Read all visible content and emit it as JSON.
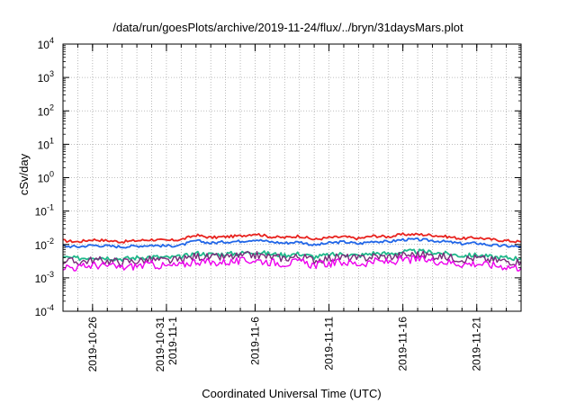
{
  "chart_data": {
    "type": "line",
    "title": "/data/run/goesPlots/archive/2019-11-24/flux/../bryn/31daysMars.plot",
    "xlabel": "Coordinated Universal Time (UTC)",
    "ylabel": "cSv/day",
    "yscale": "log",
    "ylim": [
      0.0001,
      10000
    ],
    "xlim": [
      "2019-10-24",
      "2019-11-24"
    ],
    "y_ticks": [
      {
        "value": 0.0001,
        "base": "10",
        "exp": "-4"
      },
      {
        "value": 0.001,
        "base": "10",
        "exp": "-3"
      },
      {
        "value": 0.01,
        "base": "10",
        "exp": "-2"
      },
      {
        "value": 0.1,
        "base": "10",
        "exp": "-1"
      },
      {
        "value": 1,
        "base": "10",
        "exp": "0"
      },
      {
        "value": 10,
        "base": "10",
        "exp": "1"
      },
      {
        "value": 100,
        "base": "10",
        "exp": "2"
      },
      {
        "value": 1000,
        "base": "10",
        "exp": "3"
      },
      {
        "value": 10000,
        "base": "10",
        "exp": "4"
      }
    ],
    "x_ticks": [
      {
        "date": "2019-10-26",
        "lines": [
          "2019-10-26"
        ]
      },
      {
        "date": "2019-10-31",
        "lines": [
          "2019-10-31",
          "2019-11-1"
        ]
      },
      {
        "date": "2019-11-06",
        "lines": [
          "2019-11-6"
        ]
      },
      {
        "date": "2019-11-11",
        "lines": [
          "2019-11-11"
        ]
      },
      {
        "date": "2019-11-16",
        "lines": [
          "2019-11-16"
        ]
      },
      {
        "date": "2019-11-21",
        "lines": [
          "2019-11-21"
        ]
      }
    ],
    "x_minor_dates": [
      "2019-10-25",
      "2019-10-26",
      "2019-10-27",
      "2019-10-28",
      "2019-10-29",
      "2019-10-30",
      "2019-10-31",
      "2019-11-01",
      "2019-11-02",
      "2019-11-03",
      "2019-11-04",
      "2019-11-05",
      "2019-11-06",
      "2019-11-07",
      "2019-11-08",
      "2019-11-09",
      "2019-11-10",
      "2019-11-11",
      "2019-11-12",
      "2019-11-13",
      "2019-11-14",
      "2019-11-15",
      "2019-11-16",
      "2019-11-17",
      "2019-11-18",
      "2019-11-19",
      "2019-11-20",
      "2019-11-21",
      "2019-11-22",
      "2019-11-23"
    ],
    "grid": true,
    "legend": "none",
    "series": [
      {
        "color": "#e8231f",
        "x": [
          "2019-10-24",
          "2019-10-25",
          "2019-10-26",
          "2019-10-27",
          "2019-10-28",
          "2019-10-29",
          "2019-10-30",
          "2019-10-31",
          "2019-11-01",
          "2019-11-02",
          "2019-11-03",
          "2019-11-04",
          "2019-11-05",
          "2019-11-06",
          "2019-11-07",
          "2019-11-08",
          "2019-11-09",
          "2019-11-10",
          "2019-11-11",
          "2019-11-12",
          "2019-11-13",
          "2019-11-14",
          "2019-11-15",
          "2019-11-16",
          "2019-11-17",
          "2019-11-18",
          "2019-11-19",
          "2019-11-20",
          "2019-11-21",
          "2019-11-22",
          "2019-11-23",
          "2019-11-24"
        ],
        "values": [
          0.013,
          0.012,
          0.014,
          0.013,
          0.012,
          0.013,
          0.014,
          0.013,
          0.014,
          0.019,
          0.016,
          0.017,
          0.018,
          0.021,
          0.017,
          0.016,
          0.018,
          0.014,
          0.016,
          0.017,
          0.015,
          0.018,
          0.017,
          0.02,
          0.02,
          0.019,
          0.017,
          0.015,
          0.016,
          0.014,
          0.013,
          0.012
        ]
      },
      {
        "color": "#2166e8",
        "x": [
          "2019-10-24",
          "2019-10-25",
          "2019-10-26",
          "2019-10-27",
          "2019-10-28",
          "2019-10-29",
          "2019-10-30",
          "2019-10-31",
          "2019-11-01",
          "2019-11-02",
          "2019-11-03",
          "2019-11-04",
          "2019-11-05",
          "2019-11-06",
          "2019-11-07",
          "2019-11-08",
          "2019-11-09",
          "2019-11-10",
          "2019-11-11",
          "2019-11-12",
          "2019-11-13",
          "2019-11-14",
          "2019-11-15",
          "2019-11-16",
          "2019-11-17",
          "2019-11-18",
          "2019-11-19",
          "2019-11-20",
          "2019-11-21",
          "2019-11-22",
          "2019-11-23",
          "2019-11-24"
        ],
        "values": [
          0.009,
          0.0085,
          0.0095,
          0.009,
          0.0085,
          0.009,
          0.0095,
          0.009,
          0.0095,
          0.013,
          0.011,
          0.012,
          0.0125,
          0.014,
          0.012,
          0.011,
          0.012,
          0.0095,
          0.011,
          0.012,
          0.0105,
          0.0125,
          0.012,
          0.014,
          0.014,
          0.013,
          0.012,
          0.0105,
          0.011,
          0.0095,
          0.009,
          0.0085
        ]
      },
      {
        "color": "#1fb88a",
        "x": [
          "2019-10-24",
          "2019-10-25",
          "2019-10-26",
          "2019-10-27",
          "2019-10-28",
          "2019-10-29",
          "2019-10-30",
          "2019-10-31",
          "2019-11-01",
          "2019-11-02",
          "2019-11-03",
          "2019-11-04",
          "2019-11-05",
          "2019-11-06",
          "2019-11-07",
          "2019-11-08",
          "2019-11-09",
          "2019-11-10",
          "2019-11-11",
          "2019-11-12",
          "2019-11-13",
          "2019-11-14",
          "2019-11-15",
          "2019-11-16",
          "2019-11-17",
          "2019-11-18",
          "2019-11-19",
          "2019-11-20",
          "2019-11-21",
          "2019-11-22",
          "2019-11-23",
          "2019-11-24"
        ],
        "values": [
          0.004,
          0.0038,
          0.0042,
          0.004,
          0.0037,
          0.004,
          0.0043,
          0.004,
          0.0042,
          0.0055,
          0.005,
          0.0052,
          0.0054,
          0.006,
          0.0052,
          0.0048,
          0.0053,
          0.0042,
          0.0048,
          0.0052,
          0.0046,
          0.0055,
          0.0052,
          0.006,
          0.0062,
          0.0058,
          0.0052,
          0.0046,
          0.0048,
          0.0042,
          0.004,
          0.0038
        ]
      },
      {
        "color": "#7a2a7a",
        "x": [
          "2019-10-24",
          "2019-10-25",
          "2019-10-26",
          "2019-10-27",
          "2019-10-28",
          "2019-10-29",
          "2019-10-30",
          "2019-10-31",
          "2019-11-01",
          "2019-11-02",
          "2019-11-03",
          "2019-11-04",
          "2019-11-05",
          "2019-11-06",
          "2019-11-07",
          "2019-11-08",
          "2019-11-09",
          "2019-11-10",
          "2019-11-11",
          "2019-11-12",
          "2019-11-13",
          "2019-11-14",
          "2019-11-15",
          "2019-11-16",
          "2019-11-17",
          "2019-11-18",
          "2019-11-19",
          "2019-11-20",
          "2019-11-21",
          "2019-11-22",
          "2019-11-23",
          "2019-11-24"
        ],
        "values": [
          0.0032,
          0.003,
          0.0034,
          0.0032,
          0.003,
          0.0032,
          0.0035,
          0.0032,
          0.0034,
          0.0045,
          0.004,
          0.0042,
          0.0044,
          0.0048,
          0.0042,
          0.0039,
          0.0043,
          0.0034,
          0.0039,
          0.0042,
          0.0037,
          0.0044,
          0.0042,
          0.0048,
          0.005,
          0.0046,
          0.0042,
          0.0037,
          0.0039,
          0.0034,
          0.0032,
          0.003
        ]
      },
      {
        "color": "#ee00ee",
        "x": [
          "2019-10-24",
          "2019-10-25",
          "2019-10-26",
          "2019-10-27",
          "2019-10-28",
          "2019-10-29",
          "2019-10-30",
          "2019-10-31",
          "2019-11-01",
          "2019-11-02",
          "2019-11-03",
          "2019-11-04",
          "2019-11-05",
          "2019-11-06",
          "2019-11-07",
          "2019-11-08",
          "2019-11-09",
          "2019-11-10",
          "2019-11-11",
          "2019-11-12",
          "2019-11-13",
          "2019-11-14",
          "2019-11-15",
          "2019-11-16",
          "2019-11-17",
          "2019-11-18",
          "2019-11-19",
          "2019-11-20",
          "2019-11-21",
          "2019-11-22",
          "2019-11-23",
          "2019-11-24"
        ],
        "values": [
          0.0022,
          0.002,
          0.0024,
          0.0023,
          0.002,
          0.0023,
          0.0025,
          0.0022,
          0.0024,
          0.0032,
          0.0028,
          0.003,
          0.0031,
          0.0034,
          0.003,
          0.0027,
          0.003,
          0.0024,
          0.0027,
          0.003,
          0.0026,
          0.0031,
          0.003,
          0.0034,
          0.0036,
          0.0033,
          0.003,
          0.0026,
          0.0027,
          0.0024,
          0.0022,
          0.002
        ]
      }
    ]
  }
}
